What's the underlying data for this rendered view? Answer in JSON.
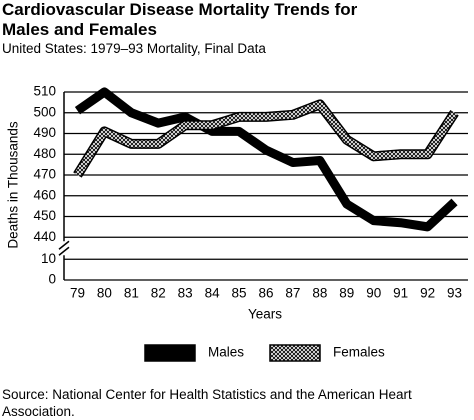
{
  "chart_data": {
    "type": "line",
    "title": "Cardiovascular Disease Mortality Trends for Males and Females",
    "subtitle": "United States: 1979–93 Mortality, Final Data",
    "x_label": "Years",
    "y_label": "Deaths in Thousands",
    "categories": [
      "79",
      "80",
      "81",
      "82",
      "83",
      "84",
      "85",
      "86",
      "87",
      "88",
      "89",
      "90",
      "91",
      "92",
      "93"
    ],
    "series": [
      {
        "name": "Males",
        "color": "#000000",
        "style": "solid",
        "values": [
          501,
          510,
          500,
          495,
          498,
          491,
          491,
          482,
          476,
          477,
          456,
          448,
          447,
          445,
          457
        ]
      },
      {
        "name": "Females",
        "color": "#000000",
        "style": "crosshatch",
        "values": [
          470,
          491,
          485,
          485,
          494,
          494,
          498,
          498,
          499,
          504,
          487,
          479,
          480,
          480,
          500
        ]
      }
    ],
    "ylim": [
      0,
      510
    ],
    "y_break": [
      10,
      440
    ],
    "yticks": [
      0,
      10,
      440,
      450,
      460,
      470,
      480,
      490,
      500,
      510
    ],
    "grid": true,
    "source": "Source: National Center for Health Statistics and the American Heart Association."
  }
}
